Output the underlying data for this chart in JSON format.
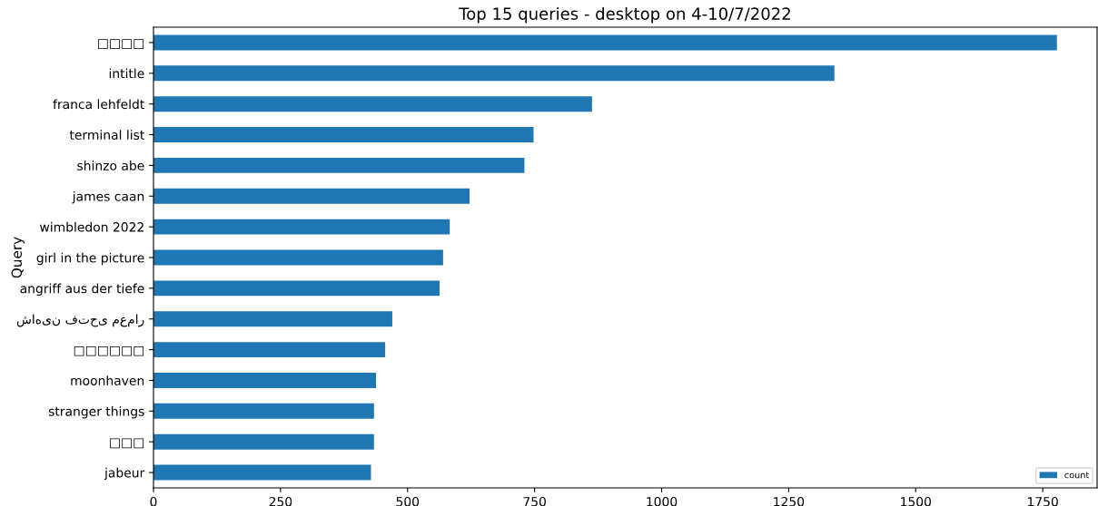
{
  "chart_data": {
    "type": "bar",
    "orientation": "horizontal",
    "title": "Top 15 queries - desktop on 4-10/7/2022",
    "ylabel": "Query",
    "categories": [
      "□□□□",
      "intitle",
      "franca lehfeldt",
      "terminal list",
      "shinzo abe",
      "james caan",
      "wimbledon 2022",
      "girl in the picture",
      "angriff aus der tiefe",
      "شاهین فتحی معمار",
      "□□□□□□",
      "moonhaven",
      "stranger things",
      "□□□",
      "jabeur"
    ],
    "series": [
      {
        "name": "count",
        "color": "#1f77b4",
        "values": [
          1778,
          1340,
          863,
          748,
          730,
          622,
          583,
          570,
          563,
          470,
          456,
          438,
          434,
          434,
          428
        ]
      }
    ],
    "xlim": [
      0,
      1857
    ],
    "xticks": [
      0,
      250,
      500,
      750,
      1000,
      1250,
      1500,
      1750
    ],
    "grid": false,
    "legend": "bottom right"
  }
}
